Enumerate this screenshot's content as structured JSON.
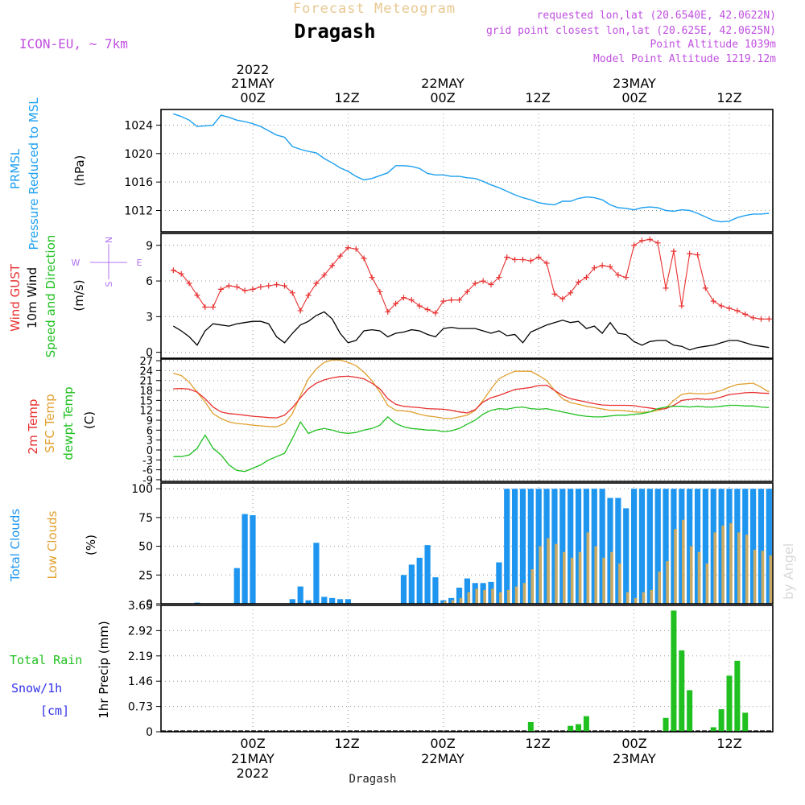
{
  "header": {
    "title": "Forecast Meteogram",
    "location": "Dragash",
    "model": "ICON-EU, ~ 7km",
    "requested": "requested lon,lat (20.6540E, 42.0622N)",
    "grid_point": "grid point closest lon,lat (20.625E, 42.0625N)",
    "point_altitude": "Point Altitude 1039m",
    "model_altitude": "Model Point Altitude 1219.12m",
    "footer_location": "Dragash",
    "watermark": "by Angel"
  },
  "colors": {
    "pressure": "#1ea0f0",
    "gust": "#e83030",
    "wind": "#000000",
    "t2m": "#e83030",
    "sfc": "#e0a030",
    "dewpt": "#20c020",
    "total_cloud": "#1e96f0",
    "low_cloud": "#c8aa64",
    "rain": "#20c020",
    "snow": "#3232e8",
    "title": "#e8c890",
    "info": "#c050e0",
    "compass": "#b070f0"
  },
  "time_axis": {
    "hour_labels": [
      "00Z",
      "12Z",
      "00Z",
      "12Z",
      "00Z",
      "12Z"
    ],
    "date_labels": [
      "21MAY",
      "22MAY",
      "23MAY"
    ],
    "year": "2022"
  },
  "compass": {
    "n": "N",
    "s": "S",
    "w": "W",
    "e": "E"
  },
  "chart_data": [
    {
      "type": "line",
      "panel": "pressure",
      "ylabel_a": "PRMSL",
      "ylabel_b": "Pressure Reduced to MSL",
      "unit": "(hPa)",
      "yticks": [
        "1024",
        "1020",
        "1016",
        "1012"
      ],
      "ylim": [
        1009,
        1026.2
      ],
      "x_hours": [
        -10,
        -9,
        -8,
        -7,
        -6,
        -5,
        -4,
        -3,
        -2,
        -1,
        0,
        1,
        2,
        3,
        4,
        5,
        6,
        7,
        8,
        9,
        10,
        11,
        12,
        13,
        14,
        15,
        16,
        17,
        18,
        19,
        20,
        21,
        22,
        23,
        24,
        25,
        26,
        27,
        28,
        29,
        30,
        31,
        32,
        33,
        34,
        35,
        36,
        37,
        38,
        39,
        40,
        41,
        42,
        43,
        44,
        45,
        46,
        47,
        48,
        49,
        50,
        51,
        52,
        53,
        54,
        55,
        56,
        57,
        58,
        59,
        60,
        61,
        62,
        63,
        64,
        65
      ],
      "values": [
        1025.6,
        1025.2,
        1024.7,
        1023.8,
        1023.9,
        1024.0,
        1025.4,
        1025.1,
        1024.7,
        1024.5,
        1024.2,
        1023.8,
        1023.2,
        1022.6,
        1022.3,
        1021.0,
        1020.6,
        1020.3,
        1020.1,
        1019.3,
        1018.7,
        1018.0,
        1017.5,
        1016.8,
        1016.3,
        1016.5,
        1016.9,
        1017.3,
        1018.3,
        1018.3,
        1018.2,
        1017.9,
        1017.2,
        1017.0,
        1017.0,
        1016.8,
        1016.8,
        1016.6,
        1016.5,
        1016.1,
        1015.6,
        1015.2,
        1014.7,
        1014.2,
        1013.8,
        1013.5,
        1013.1,
        1012.9,
        1012.8,
        1013.3,
        1013.3,
        1013.7,
        1013.9,
        1013.8,
        1013.5,
        1012.8,
        1012.4,
        1012.3,
        1012.1,
        1012.4,
        1012.5,
        1012.4,
        1012.0,
        1011.9,
        1012.1,
        1012.0,
        1011.6,
        1011.1,
        1010.6,
        1010.4,
        1010.5,
        1011.0,
        1011.3,
        1011.5,
        1011.5,
        1011.6
      ]
    },
    {
      "type": "line",
      "panel": "wind",
      "ylabel_gust": "Wind GUST",
      "ylabel_wind": "10m Wind",
      "ylabel_dir": "Speed and Direction",
      "unit": "(m/s)",
      "yticks": [
        "9",
        "6",
        "3",
        "0"
      ],
      "ylim": [
        -0.5,
        10
      ],
      "x_hours": [
        -10,
        -9,
        -8,
        -7,
        -6,
        -5,
        -4,
        -3,
        -2,
        -1,
        0,
        1,
        2,
        3,
        4,
        5,
        6,
        7,
        8,
        9,
        10,
        11,
        12,
        13,
        14,
        15,
        16,
        17,
        18,
        19,
        20,
        21,
        22,
        23,
        24,
        25,
        26,
        27,
        28,
        29,
        30,
        31,
        32,
        33,
        34,
        35,
        36,
        37,
        38,
        39,
        40,
        41,
        42,
        43,
        44,
        45,
        46,
        47,
        48,
        49,
        50,
        51,
        52,
        53,
        54,
        55,
        56,
        57,
        58,
        59,
        60,
        61,
        62,
        63,
        64,
        65
      ],
      "gust": [
        6.9,
        6.6,
        5.8,
        4.8,
        3.8,
        3.8,
        5.3,
        5.6,
        5.5,
        5.2,
        5.3,
        5.5,
        5.6,
        5.7,
        5.6,
        5.0,
        3.5,
        4.8,
        5.8,
        6.5,
        7.3,
        8.1,
        8.8,
        8.7,
        7.9,
        6.3,
        5.1,
        3.4,
        4.1,
        4.6,
        4.4,
        3.9,
        3.6,
        3.3,
        4.3,
        4.4,
        4.4,
        5.1,
        5.8,
        6.0,
        5.7,
        6.3,
        8.0,
        7.8,
        7.8,
        7.7,
        8.0,
        7.5,
        4.9,
        4.5,
        5.0,
        5.9,
        6.3,
        7.1,
        7.3,
        7.2,
        6.5,
        6.3,
        9.0,
        9.4,
        9.5,
        9.2,
        5.4,
        8.5,
        3.9,
        8.3,
        8.2,
        5.4,
        4.3,
        3.9,
        3.7,
        3.5,
        3.2,
        2.9,
        2.8,
        2.8
      ],
      "speed": [
        2.2,
        1.8,
        1.3,
        0.6,
        1.8,
        2.4,
        2.3,
        2.2,
        2.4,
        2.5,
        2.6,
        2.6,
        2.4,
        1.3,
        0.8,
        1.6,
        2.3,
        2.6,
        3.1,
        3.4,
        2.8,
        1.6,
        0.8,
        1.0,
        1.8,
        1.9,
        1.8,
        1.3,
        1.6,
        1.7,
        1.9,
        1.8,
        1.5,
        1.3,
        2.0,
        2.1,
        2.0,
        2.0,
        2.0,
        1.8,
        1.6,
        1.8,
        1.4,
        1.5,
        0.8,
        1.7,
        2.0,
        2.3,
        2.5,
        2.7,
        2.5,
        2.6,
        2.0,
        2.2,
        1.6,
        2.5,
        1.6,
        1.5,
        0.9,
        0.6,
        0.9,
        1.0,
        1.0,
        0.6,
        0.5,
        0.2,
        0.4,
        0.5,
        0.6,
        0.8,
        1.0,
        1.0,
        0.8,
        0.6,
        0.5,
        0.4
      ]
    },
    {
      "type": "line",
      "panel": "temperature",
      "ylabel_t2m": "2m Temp",
      "ylabel_sfc": "SFC Temp",
      "ylabel_dew": "dewpt Temp",
      "unit": "(C)",
      "yticks": [
        "27",
        "24",
        "21",
        "18",
        "15",
        "12",
        "9",
        "6",
        "3",
        "0",
        "-3",
        "-6",
        "-9"
      ],
      "ylim": [
        -9.5,
        27.5
      ],
      "x_hours": [
        -10,
        -9,
        -8,
        -7,
        -6,
        -5,
        -4,
        -3,
        -2,
        -1,
        0,
        1,
        2,
        3,
        4,
        5,
        6,
        7,
        8,
        9,
        10,
        11,
        12,
        13,
        14,
        15,
        16,
        17,
        18,
        19,
        20,
        21,
        22,
        23,
        24,
        25,
        26,
        27,
        28,
        29,
        30,
        31,
        32,
        33,
        34,
        35,
        36,
        37,
        38,
        39,
        40,
        41,
        42,
        43,
        44,
        45,
        46,
        47,
        48,
        49,
        50,
        51,
        52,
        53,
        54,
        55,
        56,
        57,
        58,
        59,
        60,
        61,
        62,
        63,
        64,
        65
      ],
      "t2m": [
        18.5,
        18.6,
        18.4,
        17.5,
        15.5,
        13,
        11.5,
        11.0,
        10.8,
        10.5,
        10.2,
        10.0,
        9.8,
        9.7,
        10.5,
        12.8,
        15.8,
        18.5,
        20.2,
        21.2,
        21.8,
        22.2,
        22.3,
        22.0,
        21.5,
        20.2,
        18.5,
        15.5,
        13.8,
        13.2,
        13.0,
        12.8,
        12.5,
        12.4,
        12.3,
        12.0,
        11.5,
        11.2,
        12.2,
        14.5,
        15.8,
        16.5,
        17.4,
        18.3,
        18.6,
        18.9,
        19.5,
        19.6,
        18.0,
        16.5,
        15.5,
        15.0,
        14.5,
        14.0,
        13.6,
        13.5,
        13.5,
        13.5,
        13.4,
        13.0,
        12.7,
        12.3,
        12.5,
        13.5,
        15.0,
        15.3,
        15.5,
        15.3,
        15.4,
        16.0,
        16.8,
        17.0,
        17.3,
        17.4,
        17.2,
        17.1
      ],
      "sfc": [
        23.2,
        22.5,
        20.5,
        17.5,
        14.5,
        11.0,
        9.5,
        8.5,
        8.0,
        7.8,
        7.5,
        7.3,
        7.1,
        7.0,
        8.0,
        11.0,
        16.5,
        21.5,
        24.5,
        26.5,
        27.2,
        27.2,
        26.5,
        25.5,
        23.5,
        21.0,
        17.5,
        13.5,
        12.0,
        11.8,
        11.5,
        10.8,
        10.3,
        10.0,
        9.6,
        9.5,
        10.0,
        10.5,
        12.0,
        15.0,
        18.5,
        21.5,
        22.8,
        23.8,
        23.8,
        23.8,
        22.5,
        21.0,
        18.0,
        15.5,
        14.3,
        13.8,
        13.2,
        12.8,
        12.4,
        12.0,
        12.0,
        11.8,
        11.5,
        11.4,
        11.5,
        12.0,
        12.6,
        15.0,
        16.8,
        17.2,
        17.0,
        17.0,
        17.3,
        18.0,
        19.0,
        19.8,
        20.0,
        20.2,
        19.0,
        17.5
      ],
      "dewpt": [
        -2.0,
        -2.0,
        -1.5,
        0.5,
        4.5,
        0.5,
        -1.5,
        -4.5,
        -6.2,
        -6.5,
        -5.5,
        -4.5,
        -3.0,
        -2.0,
        -1.0,
        3.5,
        8.5,
        5.0,
        6.0,
        6.5,
        6.0,
        5.3,
        5.0,
        5.3,
        6.0,
        6.5,
        7.5,
        10.0,
        8.0,
        7.0,
        6.5,
        6.3,
        6.0,
        6.0,
        5.5,
        5.8,
        6.5,
        7.8,
        9.0,
        10.8,
        12.0,
        12.5,
        12.3,
        12.8,
        13.0,
        12.5,
        12.3,
        12.5,
        12.0,
        11.5,
        11.0,
        10.5,
        10.2,
        10.0,
        10.0,
        10.3,
        10.5,
        10.5,
        10.8,
        11.0,
        11.5,
        12.5,
        13.0,
        13.2,
        13.2,
        13.0,
        13.2,
        13.0,
        13.0,
        13.2,
        13.5,
        13.5,
        13.3,
        13.3,
        13.0,
        12.8
      ]
    },
    {
      "type": "bar",
      "panel": "clouds",
      "ylabel_total": "Total Clouds",
      "ylabel_low": "Low Clouds",
      "unit": "(%)",
      "yticks": [
        "100",
        "75",
        "50",
        "25",
        "0"
      ],
      "ylim": [
        0,
        105
      ],
      "x_hours": [
        -10,
        -9,
        -8,
        -7,
        -6,
        -5,
        -4,
        -3,
        -2,
        -1,
        0,
        1,
        2,
        3,
        4,
        5,
        6,
        7,
        8,
        9,
        10,
        11,
        12,
        13,
        14,
        15,
        16,
        17,
        18,
        19,
        20,
        21,
        22,
        23,
        24,
        25,
        26,
        27,
        28,
        29,
        30,
        31,
        32,
        33,
        34,
        35,
        36,
        37,
        38,
        39,
        40,
        41,
        42,
        43,
        44,
        45,
        46,
        47,
        48,
        49,
        50,
        51,
        52,
        53,
        54,
        55,
        56,
        57,
        58,
        59,
        60,
        61,
        62,
        63,
        64,
        65
      ],
      "total": [
        0,
        0,
        0,
        1,
        0,
        0,
        0,
        0,
        31,
        78,
        77,
        0,
        0,
        0,
        0,
        4,
        15,
        3,
        53,
        6,
        5,
        4,
        4,
        0,
        0,
        0,
        0,
        0,
        0,
        25,
        34,
        40,
        51,
        23,
        3,
        5,
        14,
        22,
        18,
        18,
        19,
        36,
        100,
        100,
        100,
        100,
        100,
        100,
        100,
        100,
        100,
        100,
        100,
        100,
        100,
        92,
        92,
        83,
        100,
        100,
        100,
        100,
        100,
        100,
        100,
        100,
        100,
        100,
        100,
        100,
        100,
        100,
        100,
        100,
        100,
        100
      ],
      "low": [
        0,
        0,
        0,
        0,
        0,
        0,
        0,
        0,
        0,
        0,
        0,
        0,
        0,
        0,
        0,
        0,
        0,
        0,
        0,
        0,
        0,
        0,
        0,
        0,
        0,
        0,
        0,
        0,
        0,
        0,
        0,
        0,
        0,
        0,
        2,
        3,
        5,
        10,
        13,
        12,
        13,
        10,
        12,
        15,
        18,
        30,
        50,
        57,
        52,
        45,
        40,
        45,
        62,
        50,
        40,
        45,
        35,
        10,
        5,
        10,
        12,
        28,
        37,
        65,
        73,
        50,
        45,
        35,
        62,
        68,
        70,
        62,
        60,
        47,
        46,
        42
      ]
    },
    {
      "type": "bar",
      "panel": "precip",
      "ylabel_precip": "1hr Precip (mm)",
      "legend_rain": "Total Rain",
      "legend_snow": "Snow/1h",
      "legend_snow_unit": "[cm]",
      "yticks": [
        "3.65",
        "2.92",
        "2.19",
        "1.46",
        "0.73",
        "0"
      ],
      "ylim": [
        0,
        3.65
      ],
      "x_hours": [
        -10,
        -9,
        -8,
        -7,
        -6,
        -5,
        -4,
        -3,
        -2,
        -1,
        0,
        1,
        2,
        3,
        4,
        5,
        6,
        7,
        8,
        9,
        10,
        11,
        12,
        13,
        14,
        15,
        16,
        17,
        18,
        19,
        20,
        21,
        22,
        23,
        24,
        25,
        26,
        27,
        28,
        29,
        30,
        31,
        32,
        33,
        34,
        35,
        36,
        37,
        38,
        39,
        40,
        41,
        42,
        43,
        44,
        45,
        46,
        47,
        48,
        49,
        50,
        51,
        52,
        53,
        54,
        55,
        56,
        57,
        58,
        59,
        60,
        61,
        62,
        63,
        64,
        65
      ],
      "rain": [
        0,
        0,
        0,
        0,
        0,
        0,
        0,
        0,
        0,
        0,
        0,
        0,
        0,
        0,
        0,
        0,
        0,
        0,
        0,
        0,
        0,
        0,
        0,
        0,
        0,
        0,
        0,
        0,
        0,
        0,
        0,
        0,
        0,
        0,
        0,
        0,
        0,
        0,
        0,
        0,
        0,
        0,
        0,
        0,
        0,
        0.28,
        0,
        0,
        0,
        0,
        0.17,
        0.22,
        0.45,
        0,
        0,
        0,
        0,
        0,
        0,
        0,
        0,
        0,
        0.4,
        3.5,
        2.35,
        1.2,
        0,
        0,
        0.13,
        0.65,
        1.62,
        2.05,
        0.55,
        0,
        0,
        0
      ]
    }
  ]
}
